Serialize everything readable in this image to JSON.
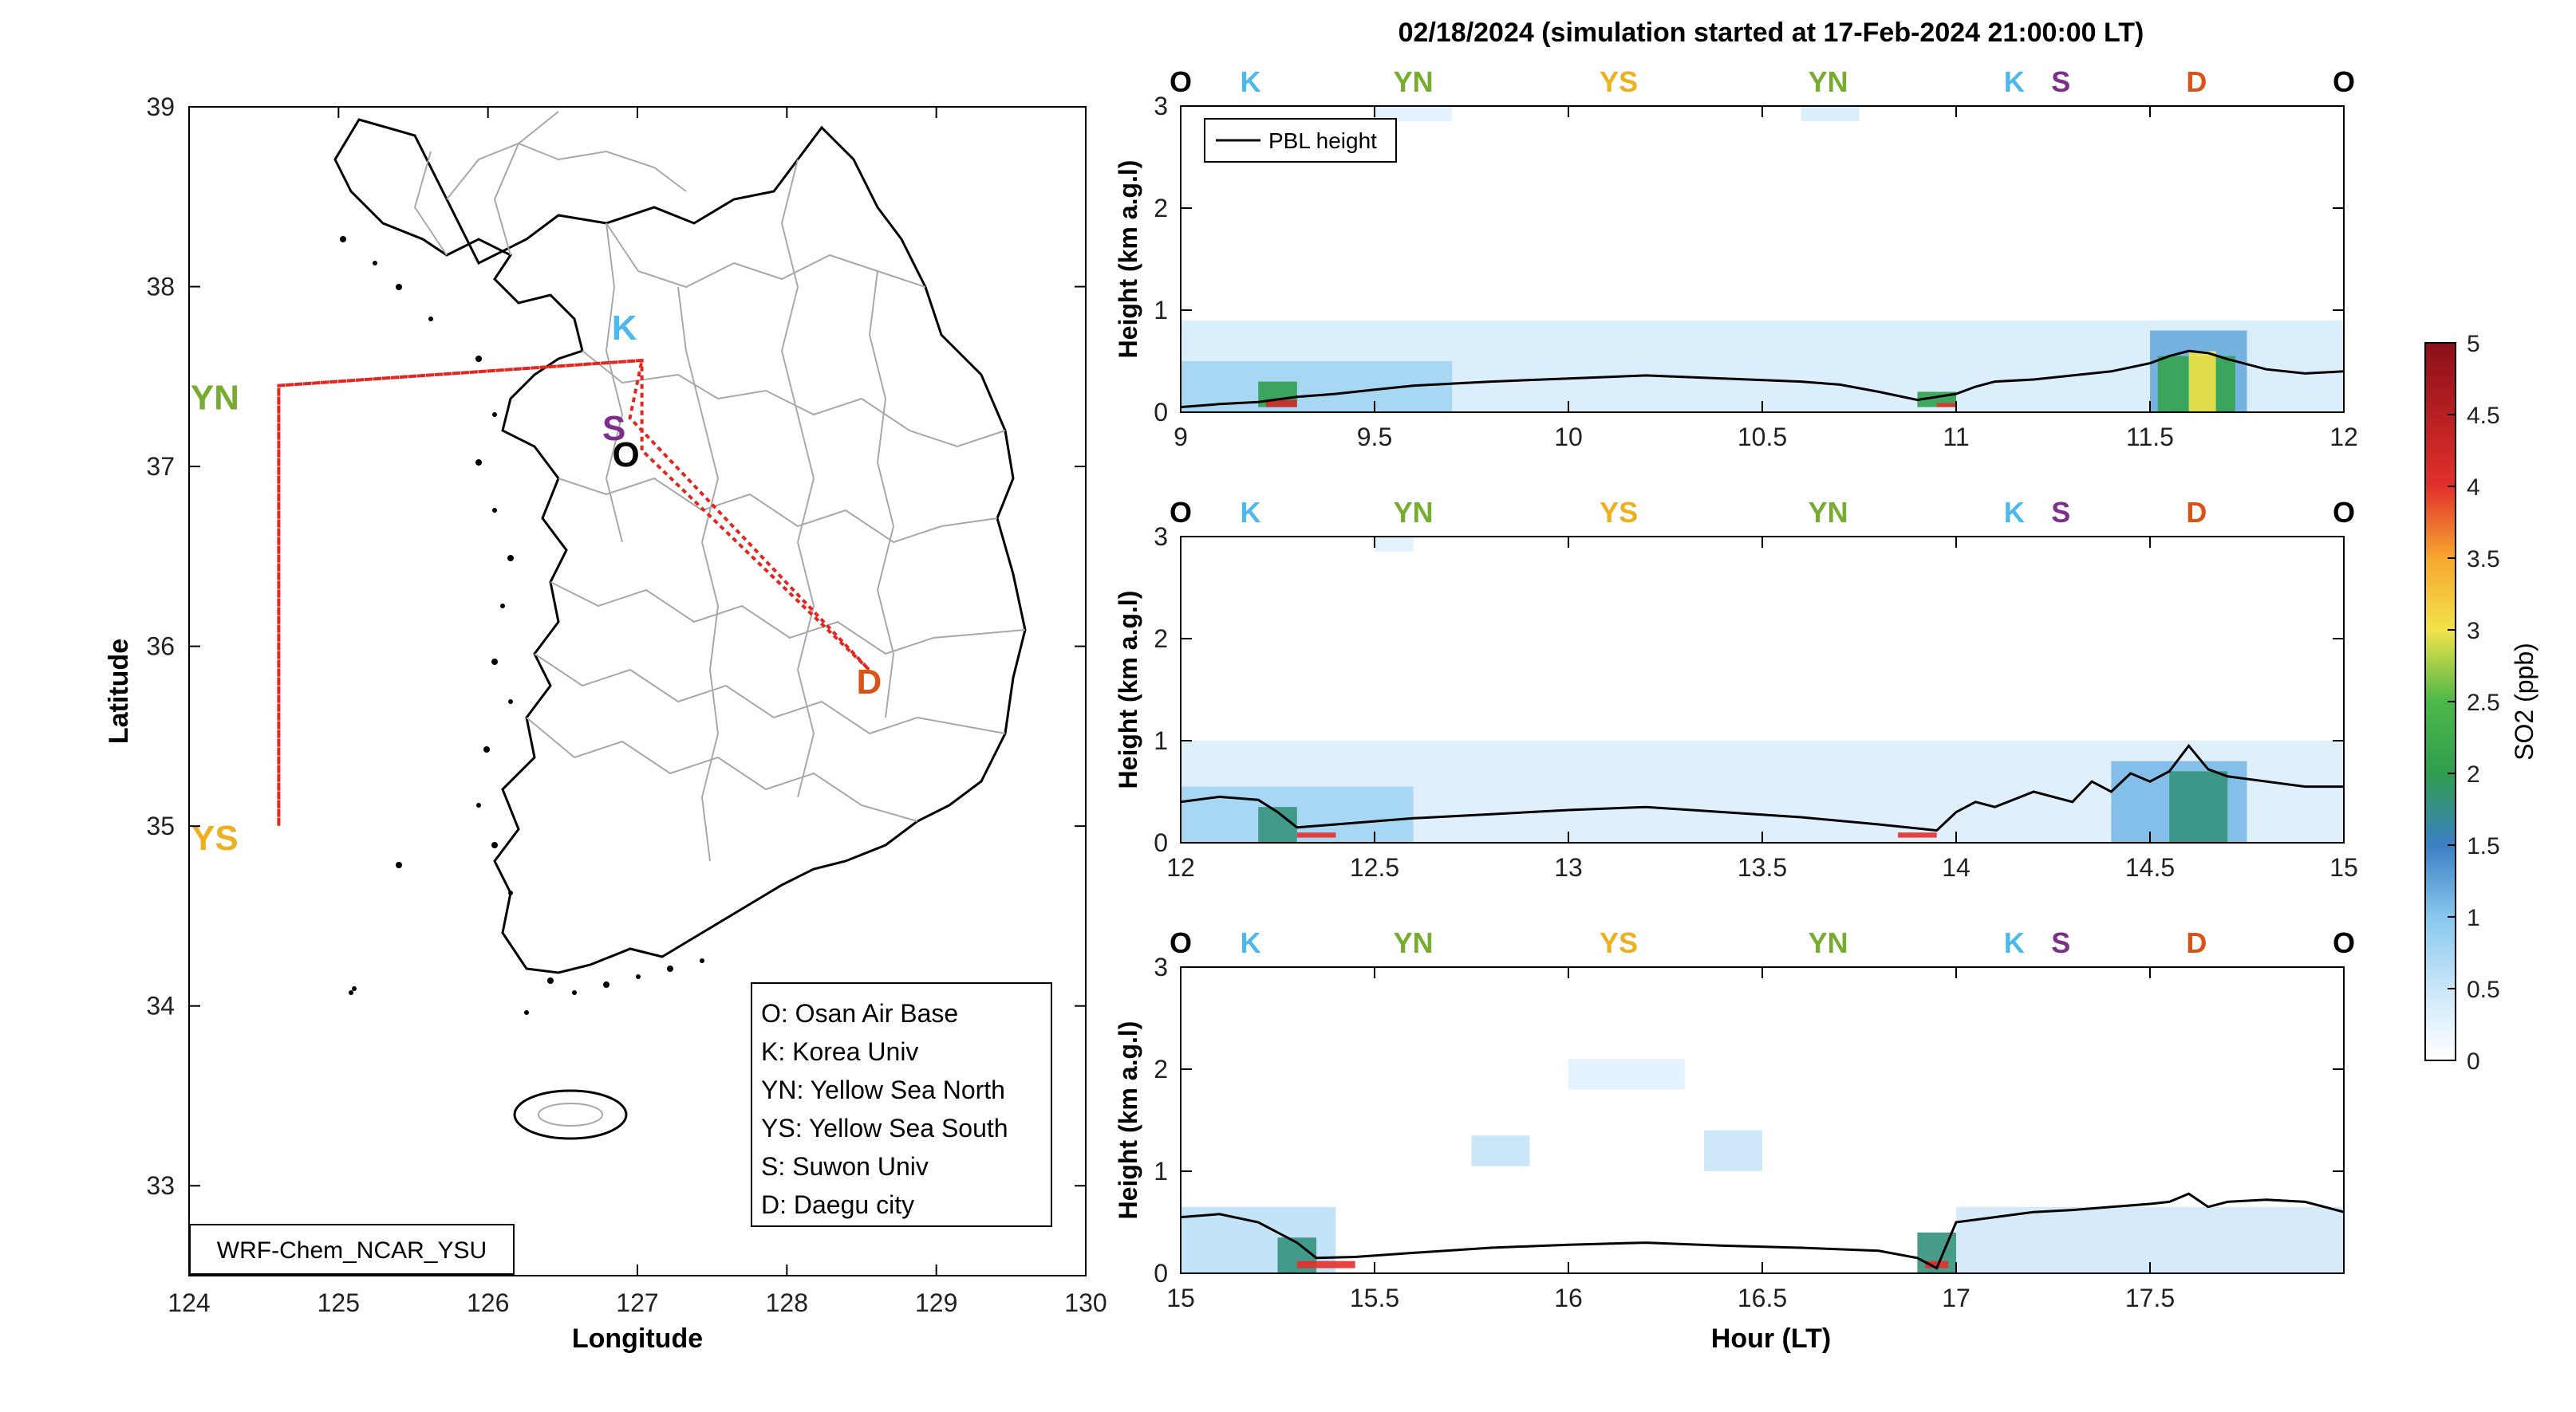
{
  "title": "02/18/2024 (simulation started at 17-Feb-2024 21:00:00 LT)",
  "colors": {
    "O": "#000000",
    "K": "#4db8ea",
    "YN": "#77ac30",
    "YS": "#edb120",
    "S": "#7e2f8e",
    "D": "#d95319",
    "route": "#e52620",
    "pbl": "#000000"
  },
  "map": {
    "xlabel": "Longitude",
    "ylabel": "Latitude",
    "xticks": [
      "124",
      "125",
      "126",
      "127",
      "128",
      "129",
      "130"
    ],
    "yticks": [
      "33",
      "34",
      "35",
      "36",
      "37",
      "38",
      "39"
    ],
    "xlim": [
      124,
      130
    ],
    "ylim": [
      32.5,
      39
    ],
    "watermark": "WRF-Chem_NCAR_YSU",
    "legend": [
      "O: Osan Air Base",
      "K: Korea Univ",
      "YN: Yellow Sea North",
      "YS: Yellow Sea South",
      "S: Suwon Univ",
      "D: Daegu city"
    ],
    "sites": [
      {
        "code": "O",
        "lon": 127.03,
        "lat": 37.09
      },
      {
        "code": "K",
        "lon": 127.03,
        "lat": 37.59
      },
      {
        "code": "YN",
        "lon": 124.6,
        "lat": 37.45
      },
      {
        "code": "YS",
        "lon": 124.6,
        "lat": 35.0
      },
      {
        "code": "S",
        "lon": 126.95,
        "lat": 37.27
      },
      {
        "code": "D",
        "lon": 128.55,
        "lat": 35.87
      }
    ]
  },
  "chart_data": [
    {
      "type": "heatmap",
      "ylabel": "Height (km a.g.l)",
      "xlim": [
        9,
        12
      ],
      "ylim": [
        0,
        3
      ],
      "xticks": [
        "9",
        "9.5",
        "10",
        "10.5",
        "11",
        "11.5",
        "12"
      ],
      "yticks": [
        "0",
        "1",
        "2",
        "3"
      ],
      "legend": [
        "PBL height"
      ],
      "top_labels": [
        {
          "code": "O",
          "x": 9.0
        },
        {
          "code": "K",
          "x": 9.18
        },
        {
          "code": "YN",
          "x": 9.6
        },
        {
          "code": "YS",
          "x": 10.13
        },
        {
          "code": "YN",
          "x": 10.67
        },
        {
          "code": "K",
          "x": 11.15
        },
        {
          "code": "S",
          "x": 11.27
        },
        {
          "code": "D",
          "x": 11.62
        },
        {
          "code": "O",
          "x": 12.0
        }
      ],
      "pbl": {
        "x": [
          9.0,
          9.1,
          9.2,
          9.3,
          9.4,
          9.5,
          9.6,
          9.8,
          10.0,
          10.2,
          10.4,
          10.6,
          10.7,
          10.8,
          10.9,
          11.0,
          11.05,
          11.1,
          11.2,
          11.3,
          11.4,
          11.5,
          11.55,
          11.6,
          11.65,
          11.7,
          11.8,
          11.9,
          12.0
        ],
        "y": [
          0.05,
          0.08,
          0.1,
          0.15,
          0.18,
          0.22,
          0.26,
          0.3,
          0.33,
          0.36,
          0.33,
          0.3,
          0.27,
          0.2,
          0.12,
          0.18,
          0.25,
          0.3,
          0.32,
          0.36,
          0.4,
          0.48,
          0.55,
          0.6,
          0.58,
          0.52,
          0.42,
          0.38,
          0.4
        ]
      },
      "so2_patches": [
        {
          "x0": 9.0,
          "x1": 12.0,
          "y0": 0.0,
          "y1": 0.9,
          "v": 0.4
        },
        {
          "x0": 9.0,
          "x1": 9.7,
          "y0": 0.0,
          "y1": 0.5,
          "v": 0.8
        },
        {
          "x0": 9.2,
          "x1": 9.3,
          "y0": 0.05,
          "y1": 0.3,
          "v": 2.0
        },
        {
          "x0": 9.22,
          "x1": 9.3,
          "y0": 0.05,
          "y1": 0.12,
          "v": 4.2
        },
        {
          "x0": 10.9,
          "x1": 11.0,
          "y0": 0.05,
          "y1": 0.2,
          "v": 2.0
        },
        {
          "x0": 10.95,
          "x1": 11.0,
          "y0": 0.05,
          "y1": 0.09,
          "v": 4.0
        },
        {
          "x0": 11.5,
          "x1": 11.75,
          "y0": 0.0,
          "y1": 0.8,
          "v": 1.2
        },
        {
          "x0": 11.52,
          "x1": 11.72,
          "y0": 0.0,
          "y1": 0.55,
          "v": 2.1
        },
        {
          "x0": 11.6,
          "x1": 11.67,
          "y0": 0.0,
          "y1": 0.6,
          "v": 3.0
        },
        {
          "x0": 9.5,
          "x1": 9.7,
          "y0": 2.85,
          "y1": 3.0,
          "v": 0.3
        },
        {
          "x0": 10.6,
          "x1": 10.75,
          "y0": 2.85,
          "y1": 3.0,
          "v": 0.4
        }
      ]
    },
    {
      "type": "heatmap",
      "ylabel": "Height (km a.g.l)",
      "xlim": [
        12,
        15
      ],
      "ylim": [
        0,
        3
      ],
      "xticks": [
        "12",
        "12.5",
        "13",
        "13.5",
        "14",
        "14.5",
        "15"
      ],
      "yticks": [
        "0",
        "1",
        "2",
        "3"
      ],
      "top_labels": [
        {
          "code": "O",
          "x": 12.0
        },
        {
          "code": "K",
          "x": 12.18
        },
        {
          "code": "YN",
          "x": 12.6
        },
        {
          "code": "YS",
          "x": 13.13
        },
        {
          "code": "YN",
          "x": 13.67
        },
        {
          "code": "K",
          "x": 14.15
        },
        {
          "code": "S",
          "x": 14.27
        },
        {
          "code": "D",
          "x": 14.62
        },
        {
          "code": "O",
          "x": 15.0
        }
      ],
      "pbl": {
        "x": [
          12.0,
          12.1,
          12.2,
          12.25,
          12.3,
          12.4,
          12.6,
          12.8,
          13.0,
          13.2,
          13.4,
          13.6,
          13.8,
          13.95,
          14.0,
          14.05,
          14.1,
          14.2,
          14.3,
          14.35,
          14.4,
          14.45,
          14.5,
          14.55,
          14.6,
          14.65,
          14.7,
          14.8,
          14.9,
          15.0
        ],
        "y": [
          0.4,
          0.45,
          0.42,
          0.3,
          0.15,
          0.18,
          0.24,
          0.28,
          0.32,
          0.35,
          0.3,
          0.25,
          0.18,
          0.12,
          0.3,
          0.4,
          0.35,
          0.5,
          0.4,
          0.6,
          0.5,
          0.68,
          0.6,
          0.7,
          0.95,
          0.72,
          0.65,
          0.6,
          0.55,
          0.55
        ]
      },
      "so2_patches": [
        {
          "x0": 12.0,
          "x1": 15.0,
          "y0": 0.0,
          "y1": 1.0,
          "v": 0.35
        },
        {
          "x0": 12.0,
          "x1": 12.6,
          "y0": 0.0,
          "y1": 0.55,
          "v": 0.8
        },
        {
          "x0": 12.2,
          "x1": 12.3,
          "y0": 0.0,
          "y1": 0.35,
          "v": 1.8
        },
        {
          "x0": 12.3,
          "x1": 12.4,
          "y0": 0.05,
          "y1": 0.1,
          "v": 4.0
        },
        {
          "x0": 13.85,
          "x1": 13.95,
          "y0": 0.05,
          "y1": 0.1,
          "v": 4.0
        },
        {
          "x0": 14.4,
          "x1": 14.75,
          "y0": 0.0,
          "y1": 0.8,
          "v": 1.1
        },
        {
          "x0": 14.55,
          "x1": 14.7,
          "y0": 0.0,
          "y1": 0.7,
          "v": 1.8
        },
        {
          "x0": 12.5,
          "x1": 12.6,
          "y0": 2.85,
          "y1": 3.0,
          "v": 0.3
        }
      ]
    },
    {
      "type": "heatmap",
      "xlabel": "Hour (LT)",
      "ylabel": "Height (km a.g.l)",
      "xlim": [
        15,
        18
      ],
      "ylim": [
        0,
        3
      ],
      "xticks": [
        "15",
        "15.5",
        "16",
        "16.5",
        "17",
        "17.5"
      ],
      "yticks": [
        "0",
        "1",
        "2",
        "3"
      ],
      "top_labels": [
        {
          "code": "O",
          "x": 15.0
        },
        {
          "code": "K",
          "x": 15.18
        },
        {
          "code": "YN",
          "x": 15.6
        },
        {
          "code": "YS",
          "x": 16.13
        },
        {
          "code": "YN",
          "x": 16.67
        },
        {
          "code": "K",
          "x": 17.15
        },
        {
          "code": "S",
          "x": 17.27
        },
        {
          "code": "D",
          "x": 17.62
        },
        {
          "code": "O",
          "x": 18.0
        }
      ],
      "pbl": {
        "x": [
          15.0,
          15.1,
          15.2,
          15.3,
          15.35,
          15.45,
          15.6,
          15.8,
          16.0,
          16.2,
          16.4,
          16.6,
          16.8,
          16.9,
          16.95,
          17.0,
          17.1,
          17.2,
          17.3,
          17.4,
          17.5,
          17.55,
          17.6,
          17.65,
          17.7,
          17.8,
          17.9,
          18.0
        ],
        "y": [
          0.55,
          0.58,
          0.5,
          0.3,
          0.15,
          0.16,
          0.2,
          0.25,
          0.28,
          0.3,
          0.27,
          0.25,
          0.22,
          0.15,
          0.05,
          0.5,
          0.55,
          0.6,
          0.62,
          0.65,
          0.68,
          0.7,
          0.78,
          0.65,
          0.7,
          0.72,
          0.7,
          0.6
        ]
      },
      "so2_patches": [
        {
          "x0": 15.0,
          "x1": 15.4,
          "y0": 0.0,
          "y1": 0.65,
          "v": 0.6
        },
        {
          "x0": 15.25,
          "x1": 15.35,
          "y0": 0.0,
          "y1": 0.35,
          "v": 1.8
        },
        {
          "x0": 15.3,
          "x1": 15.45,
          "y0": 0.05,
          "y1": 0.12,
          "v": 4.0
        },
        {
          "x0": 16.9,
          "x1": 17.0,
          "y0": 0.0,
          "y1": 0.4,
          "v": 1.8
        },
        {
          "x0": 16.92,
          "x1": 16.98,
          "y0": 0.05,
          "y1": 0.12,
          "v": 4.0
        },
        {
          "x0": 17.0,
          "x1": 18.0,
          "y0": 0.0,
          "y1": 0.65,
          "v": 0.45
        },
        {
          "x0": 15.75,
          "x1": 15.9,
          "y0": 1.05,
          "y1": 1.35,
          "v": 0.55
        },
        {
          "x0": 16.35,
          "x1": 16.5,
          "y0": 1.0,
          "y1": 1.4,
          "v": 0.5
        },
        {
          "x0": 16.0,
          "x1": 16.3,
          "y0": 1.8,
          "y1": 2.1,
          "v": 0.3
        }
      ]
    }
  ],
  "colorbar": {
    "label": "SO2 (ppb)",
    "ticks": [
      "0",
      "0.5",
      "1",
      "1.5",
      "2",
      "2.5",
      "3",
      "3.5",
      "4",
      "4.5",
      "5"
    ],
    "range": [
      0,
      5
    ]
  }
}
